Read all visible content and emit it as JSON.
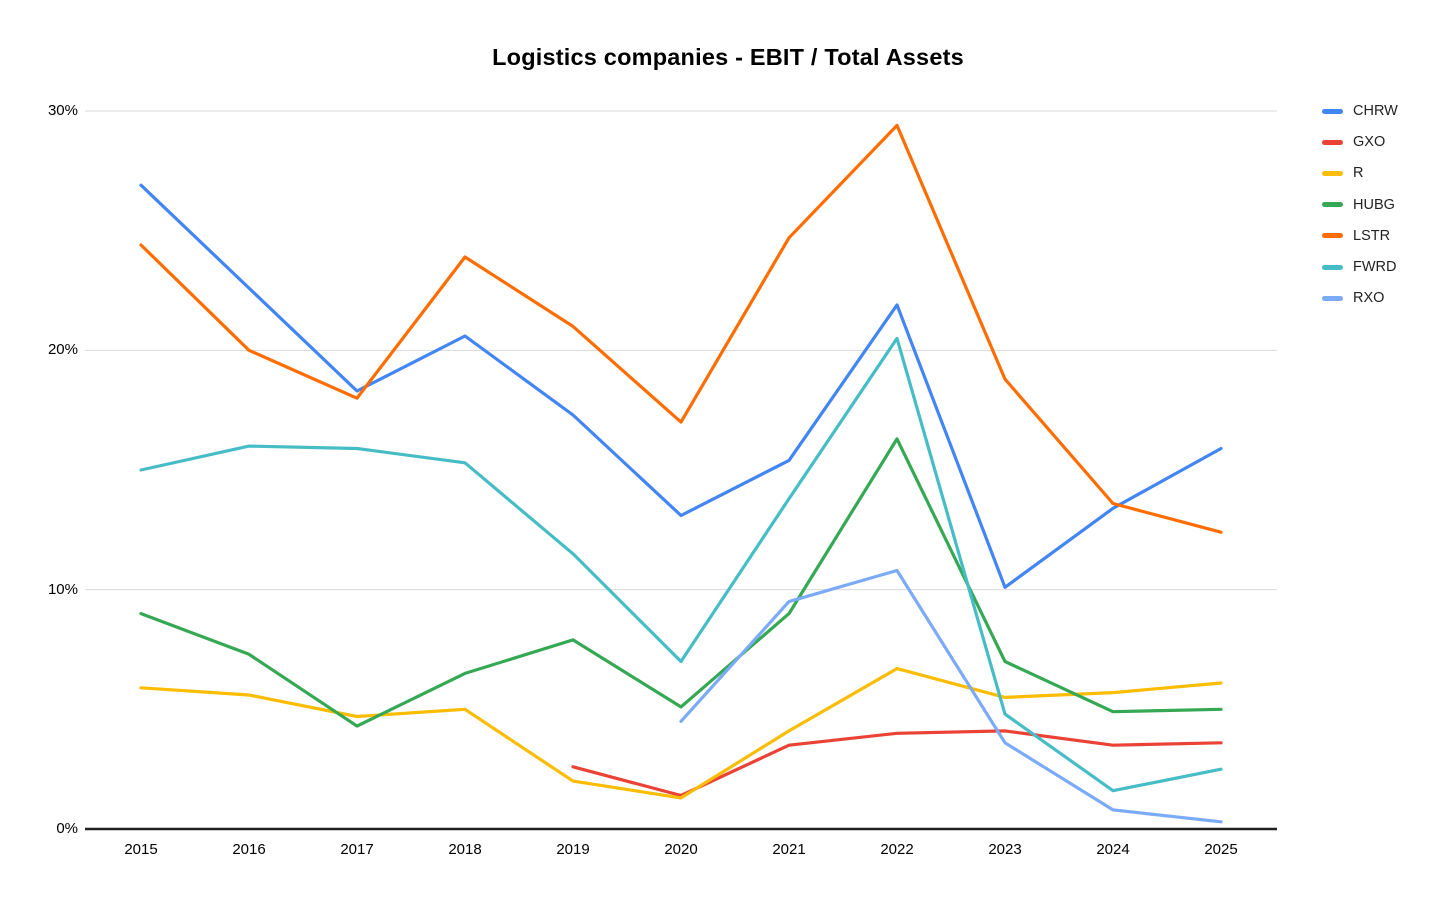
{
  "title": "Logistics companies - EBIT / Total Assets",
  "chart_data": {
    "type": "line",
    "title": "Logistics companies - EBIT / Total Assets",
    "x": [
      2015,
      2016,
      2017,
      2018,
      2019,
      2020,
      2021,
      2022,
      2023,
      2024,
      2025
    ],
    "series": [
      {
        "name": "CHRW",
        "color": "#4285F4",
        "values": [
          26.9,
          22.6,
          18.3,
          20.6,
          17.3,
          13.1,
          15.4,
          21.9,
          10.1,
          13.4,
          15.9
        ]
      },
      {
        "name": "GXO",
        "color": "#EA4335",
        "values": [
          null,
          null,
          null,
          null,
          2.6,
          1.4,
          3.5,
          4.0,
          4.1,
          3.5,
          3.6
        ]
      },
      {
        "name": "R",
        "color": "#FBBC04",
        "values": [
          5.9,
          5.6,
          4.7,
          5.0,
          2.0,
          1.3,
          4.1,
          6.7,
          5.5,
          5.7,
          6.1
        ]
      },
      {
        "name": "HUBG",
        "color": "#34A853",
        "values": [
          9.0,
          7.3,
          4.3,
          6.5,
          7.9,
          5.1,
          9.0,
          16.3,
          7.0,
          4.9,
          5.0
        ]
      },
      {
        "name": "LSTR",
        "color": "#FF6D01",
        "values": [
          24.4,
          20.0,
          18.0,
          23.9,
          21.0,
          17.0,
          24.7,
          29.4,
          18.8,
          13.6,
          12.4
        ]
      },
      {
        "name": "FWRD",
        "color": "#46BDC6",
        "values": [
          15.0,
          16.0,
          15.9,
          15.3,
          11.5,
          7.0,
          13.8,
          20.5,
          4.8,
          1.6,
          2.5
        ]
      },
      {
        "name": "RXO",
        "color": "#7BAAF7",
        "values": [
          null,
          null,
          null,
          null,
          null,
          4.5,
          9.5,
          10.8,
          3.6,
          0.8,
          0.3
        ]
      }
    ],
    "ylim": [
      0,
      30
    ],
    "yticks": [
      0,
      10,
      20,
      30
    ],
    "ytick_labels": [
      "0%",
      "10%",
      "20%",
      "30%"
    ],
    "xtick_labels": [
      "2015",
      "2016",
      "2017",
      "2018",
      "2019",
      "2020",
      "2021",
      "2022",
      "2023",
      "2024",
      "2025"
    ],
    "grid": true,
    "legend_position": "right",
    "gridline_color": "#d9d9d9",
    "axis_line_color": "#212121",
    "label_color": "#000000"
  }
}
